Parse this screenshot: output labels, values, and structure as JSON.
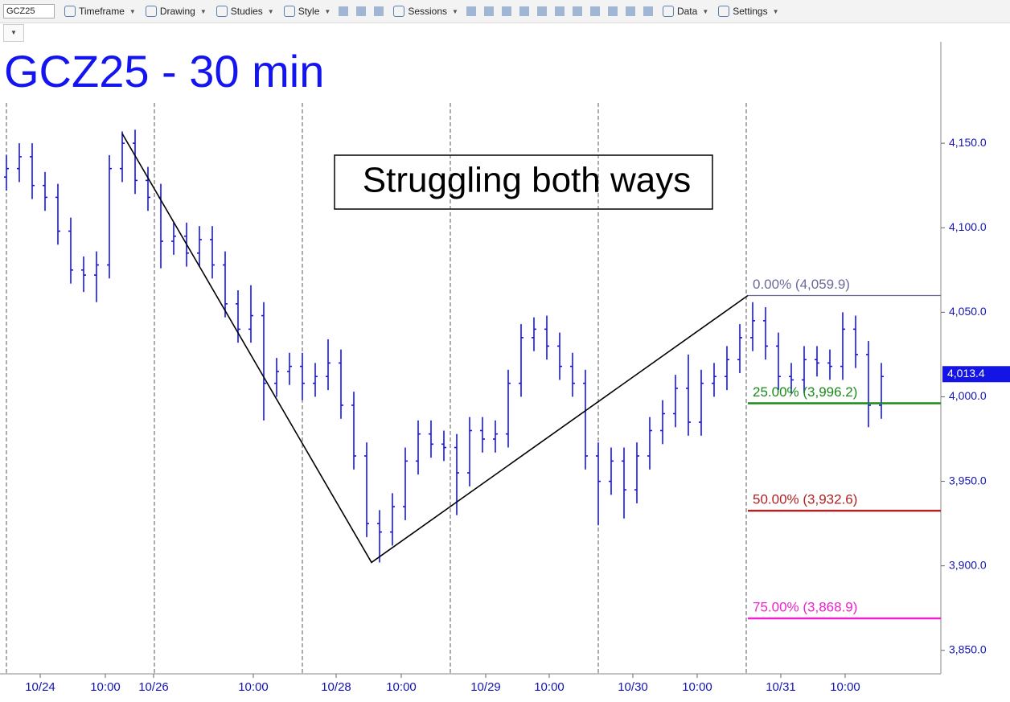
{
  "toolbar": {
    "symbol": "GCZ25",
    "items": [
      "Timeframe",
      "Drawing",
      "Studies",
      "Style",
      "Sessions",
      "Data",
      "Settings"
    ]
  },
  "chart_data": {
    "type": "ohlc",
    "title": "GCZ25 - 30 min",
    "annotation": "Struggling both ways",
    "color": "#1414e6",
    "x": [
      0,
      4,
      8,
      12,
      16,
      20,
      24,
      28,
      32,
      36,
      40,
      44,
      48,
      52,
      56,
      60,
      64,
      68,
      72,
      76,
      80,
      84,
      88,
      92,
      96,
      100,
      104,
      108,
      112,
      116,
      120,
      124,
      128,
      132,
      136,
      140,
      144,
      148,
      152,
      156,
      160,
      164,
      168,
      172,
      176,
      180,
      184,
      188,
      192,
      196,
      200,
      204,
      208,
      212,
      216,
      220,
      224,
      228,
      232,
      236,
      240,
      244,
      248,
      252,
      256,
      260,
      264,
      268,
      272
    ],
    "open": [
      4130,
      4135,
      4142,
      4125,
      4118,
      4098,
      4075,
      4072,
      4078,
      4135,
      4150,
      4128,
      4118,
      4092,
      4095,
      4085,
      4093,
      4078,
      4055,
      4040,
      4048,
      4008,
      4015,
      4018,
      4008,
      4012,
      4020,
      3995,
      3965,
      3925,
      3920,
      3935,
      3962,
      3978,
      3972,
      3970,
      3955,
      3980,
      3975,
      3978,
      4008,
      4035,
      4040,
      4030,
      4018,
      4008,
      3965,
      3950,
      3962,
      3945,
      3965,
      3980,
      3990,
      4005,
      3985,
      4008,
      4012,
      4022,
      4035,
      4045,
      4030,
      4012,
      4010,
      4022,
      4020,
      4018,
      4040,
      4025,
      3995
    ],
    "high": [
      4143,
      4150,
      4150,
      4133,
      4126,
      4106,
      4083,
      4086,
      4143,
      4157,
      4158,
      4136,
      4126,
      4103,
      4103,
      4101,
      4101,
      4086,
      4063,
      4066,
      4056,
      4023,
      4026,
      4026,
      4020,
      4034,
      4028,
      4003,
      3973,
      3933,
      3943,
      3970,
      3986,
      3986,
      3980,
      3978,
      3988,
      3988,
      3986,
      4016,
      4043,
      4047,
      4048,
      4038,
      4026,
      4016,
      3973,
      3970,
      3970,
      3973,
      3988,
      3998,
      4013,
      4025,
      4016,
      4020,
      4030,
      4043,
      4056,
      4053,
      4038,
      4020,
      4030,
      4030,
      4028,
      4050,
      4048,
      4033,
      4020
    ],
    "low": [
      4122,
      4127,
      4117,
      4110,
      4090,
      4067,
      4062,
      4056,
      4070,
      4127,
      4120,
      4110,
      4076,
      4084,
      4077,
      4077,
      4070,
      4047,
      4032,
      4032,
      3986,
      4000,
      4007,
      3998,
      4000,
      4004,
      3987,
      3957,
      3917,
      3902,
      3912,
      3927,
      3954,
      3964,
      3962,
      3930,
      3947,
      3967,
      3967,
      3970,
      4000,
      4027,
      4022,
      4010,
      4000,
      3957,
      3924,
      3942,
      3928,
      3937,
      3957,
      3972,
      3982,
      3977,
      3977,
      4000,
      4004,
      4014,
      4027,
      4022,
      4004,
      4002,
      4002,
      4012,
      4010,
      4010,
      4017,
      3982,
      3987
    ],
    "close": [
      4135,
      4142,
      4125,
      4118,
      4098,
      4075,
      4072,
      4078,
      4135,
      4150,
      4128,
      4118,
      4092,
      4095,
      4085,
      4093,
      4078,
      4055,
      4040,
      4048,
      4008,
      4015,
      4018,
      4008,
      4012,
      4020,
      3995,
      3965,
      3925,
      3920,
      3935,
      3962,
      3978,
      3972,
      3970,
      3955,
      3980,
      3975,
      3978,
      4008,
      4035,
      4040,
      4030,
      4018,
      4008,
      3965,
      3950,
      3962,
      3945,
      3965,
      3980,
      3990,
      4005,
      3985,
      4008,
      4012,
      4022,
      4035,
      4045,
      4030,
      4012,
      4010,
      4022,
      4020,
      4018,
      4040,
      4025,
      3995,
      4012
    ],
    "xlim": [
      -2,
      290.5
    ],
    "ylim": [
      3838,
      4210
    ],
    "xticks": [
      {
        "value": 10.5,
        "label": "10/24"
      },
      {
        "value": 30.75,
        "label": "10:00"
      },
      {
        "value": 45.75,
        "label": "10/26"
      },
      {
        "value": 76.75,
        "label": "10:00"
      },
      {
        "value": 102.5,
        "label": "10/28"
      },
      {
        "value": 122.75,
        "label": "10:00"
      },
      {
        "value": 149,
        "label": "10/29"
      },
      {
        "value": 168.75,
        "label": "10:00"
      },
      {
        "value": 194.75,
        "label": "10/30"
      },
      {
        "value": 214.75,
        "label": "10:00"
      },
      {
        "value": 240.75,
        "label": "10/31"
      },
      {
        "value": 260.75,
        "label": "10:00"
      }
    ],
    "yticks": [
      {
        "value": 3850,
        "label": "3,850.0"
      },
      {
        "value": 3900,
        "label": "3,900.0"
      },
      {
        "value": 3950,
        "label": "3,950.0"
      },
      {
        "value": 4000,
        "label": "4,000.0"
      },
      {
        "value": 4050,
        "label": "4,050.0"
      },
      {
        "value": 4100,
        "label": "4,100.0"
      },
      {
        "value": 4150,
        "label": "4,150.0"
      }
    ],
    "session_breaks": [
      0,
      46,
      92,
      138,
      184,
      230
    ],
    "zigzag": {
      "x": [
        36,
        113.5,
        230.5
      ],
      "y": [
        4155.7,
        3902,
        4059.9
      ]
    },
    "fib_levels": [
      {
        "value": 4059.9,
        "label": "0.00% (4,059.9)",
        "color": "#6b6b9a"
      },
      {
        "value": 3996.2,
        "label": "25.00% (3,996.2)",
        "color": "#1a8a1a"
      },
      {
        "value": 3932.6,
        "label": "50.00% (3,932.6)",
        "color": "#b22222"
      },
      {
        "value": 3868.9,
        "label": "75.00% (3,868.9)",
        "color": "#ee22cc"
      }
    ],
    "last_price": {
      "value": 4013.4,
      "label": "4,013.4"
    }
  }
}
